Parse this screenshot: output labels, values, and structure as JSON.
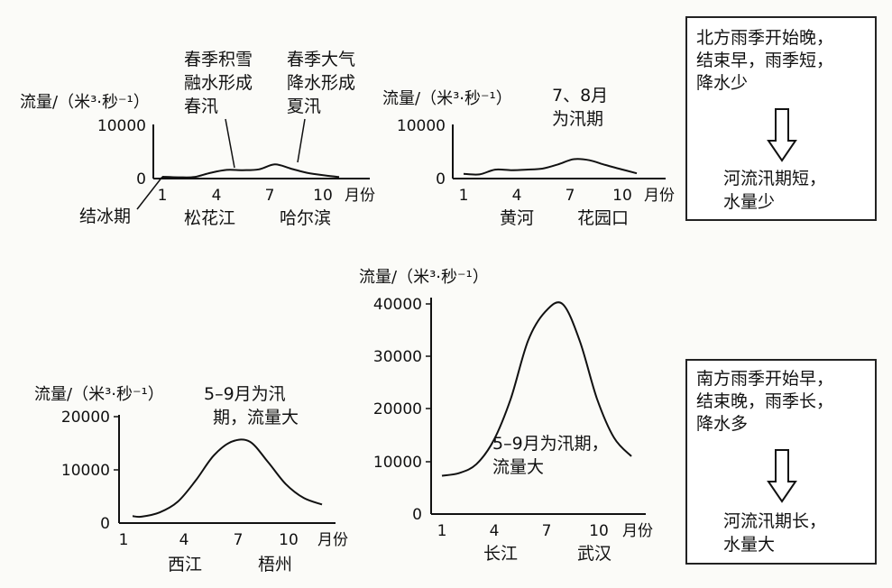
{
  "charts": [
    {
      "id": "songhua",
      "ylabel": "流量/（米³·秒⁻¹）",
      "yticks": [
        "10000",
        "0"
      ],
      "xticks": [
        "1",
        "4",
        "7",
        "10"
      ],
      "xunit": "月份",
      "river": "松花江",
      "station": "哈尔滨",
      "annotations": {
        "freeze": "结冰期",
        "spring1": "春季积雪",
        "spring2": "融水形成",
        "spring3": "春汛",
        "summer1": "春季大气",
        "summer2": "降水形成",
        "summer3": "夏汛"
      }
    },
    {
      "id": "huanghe",
      "ylabel": "流量/（米³·秒⁻¹）",
      "yticks": [
        "10000",
        "0"
      ],
      "xticks": [
        "1",
        "4",
        "7",
        "10"
      ],
      "xunit": "月份",
      "river": "黄河",
      "station": "花园口",
      "annotations": {
        "flood1": "7、8月",
        "flood2": "为汛期"
      }
    },
    {
      "id": "xijiang",
      "ylabel": "流量/（米³·秒⁻¹）",
      "yticks": [
        "20000",
        "10000",
        "0"
      ],
      "xticks": [
        "1",
        "4",
        "7",
        "10"
      ],
      "xunit": "月份",
      "river": "西江",
      "station": "梧州",
      "annotations": {
        "flood1": "5–9月为汛",
        "flood2": "期，流量大"
      }
    },
    {
      "id": "changjiang",
      "ylabel": "流量/（米³·秒⁻¹）",
      "yticks": [
        "40000",
        "30000",
        "20000",
        "10000",
        "0"
      ],
      "xticks": [
        "1",
        "4",
        "7",
        "10"
      ],
      "xunit": "月份",
      "river": "长江",
      "station": "武汉",
      "annotations": {
        "flood1": "5–9月为汛期，",
        "flood2": "流量大"
      }
    }
  ],
  "chart_data": [
    {
      "type": "line",
      "title": "",
      "x": [
        1,
        2,
        3,
        4,
        5,
        6,
        7,
        8,
        9,
        10,
        11,
        12
      ],
      "series": [
        {
          "values": [
            350,
            250,
            300,
            1100,
            1650,
            1600,
            1750,
            2700,
            1900,
            1100,
            650,
            300
          ]
        }
      ],
      "xlabel": "月份",
      "ylabel": "流量/（米³·秒⁻¹）",
      "xlim": [
        0.6,
        12.6
      ],
      "ylim": [
        0,
        10000
      ]
    },
    {
      "type": "line",
      "title": "",
      "x": [
        1,
        2,
        3,
        4,
        5,
        6,
        7,
        8,
        9,
        10,
        11,
        12
      ],
      "series": [
        {
          "values": [
            900,
            800,
            1700,
            1600,
            1700,
            1900,
            2700,
            3700,
            3500,
            2600,
            1800,
            1000
          ]
        }
      ],
      "xlabel": "月份",
      "ylabel": "流量/（米³·秒⁻¹）",
      "xlim": [
        0.6,
        12.6
      ],
      "ylim": [
        0,
        10000
      ]
    },
    {
      "type": "line",
      "title": "",
      "x": [
        1.5,
        2,
        3,
        4,
        5,
        6,
        7,
        8,
        9,
        10,
        11,
        12
      ],
      "series": [
        {
          "values": [
            1300,
            1200,
            2000,
            4000,
            8000,
            12700,
            15300,
            15300,
            11500,
            7300,
            4700,
            3500
          ]
        }
      ],
      "xlabel": "月份",
      "ylabel": "流量/（米³·秒⁻¹）",
      "xlim": [
        0.6,
        12.6
      ],
      "ylim": [
        0,
        20000
      ]
    },
    {
      "type": "line",
      "title": "",
      "x": [
        1,
        2,
        3,
        4,
        5,
        6,
        7,
        8,
        9,
        10,
        11,
        12
      ],
      "series": [
        {
          "values": [
            7300,
            7800,
            9500,
            14000,
            22000,
            33000,
            38500,
            40000,
            33000,
            22000,
            14500,
            11000
          ]
        }
      ],
      "xlabel": "月份",
      "ylabel": "流量/（米³·秒⁻¹）",
      "xlim": [
        0.6,
        12.6
      ],
      "ylim": [
        0,
        40000
      ]
    }
  ],
  "boxes": {
    "north": {
      "lines": [
        "北方雨季开始晚，",
        "结束早，雨季短，",
        "降水少"
      ],
      "result": [
        "河流汛期短，",
        "水量少"
      ]
    },
    "south": {
      "lines": [
        "南方雨季开始早，",
        "结束晚，雨季长，",
        "降水多"
      ],
      "result": [
        "河流汛期长，",
        "水量大"
      ]
    }
  }
}
